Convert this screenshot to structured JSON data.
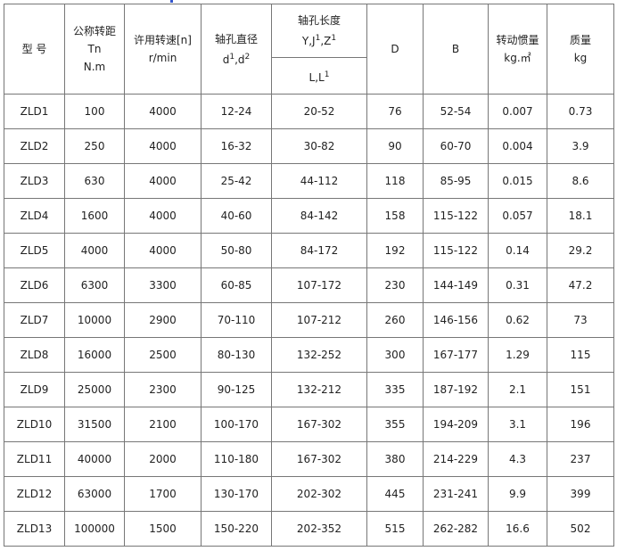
{
  "headers": {
    "model": "型 号",
    "torque": [
      "公称转距",
      "Tn",
      "N.m"
    ],
    "speed": [
      "许用转速[n]",
      "r/min"
    ],
    "bore_diameter": [
      "轴孔直径",
      "d",
      "1",
      ",d",
      "2"
    ],
    "bore_length": [
      "轴孔长度",
      "Y,J",
      "1",
      ",Z",
      "1"
    ],
    "bore_length_sub": [
      "L,L",
      "1"
    ],
    "D": "D",
    "B": "B",
    "inertia": [
      "转动惯量",
      "kg.㎡"
    ],
    "mass": [
      "质量",
      "kg"
    ]
  },
  "rows": [
    [
      "ZLD1",
      "100",
      "4000",
      "12-24",
      "20-52",
      "76",
      "52-54",
      "0.007",
      "0.73"
    ],
    [
      "ZLD2",
      "250",
      "4000",
      "16-32",
      "30-82",
      "90",
      "60-70",
      "0.004",
      "3.9"
    ],
    [
      "ZLD3",
      "630",
      "4000",
      "25-42",
      "44-112",
      "118",
      "85-95",
      "0.015",
      "8.6"
    ],
    [
      "ZLD4",
      "1600",
      "4000",
      "40-60",
      "84-142",
      "158",
      "115-122",
      "0.057",
      "18.1"
    ],
    [
      "ZLD5",
      "4000",
      "4000",
      "50-80",
      "84-172",
      "192",
      "115-122",
      "0.14",
      "29.2"
    ],
    [
      "ZLD6",
      "6300",
      "3300",
      "60-85",
      "107-172",
      "230",
      "144-149",
      "0.31",
      "47.2"
    ],
    [
      "ZLD7",
      "10000",
      "2900",
      "70-110",
      "107-212",
      "260",
      "146-156",
      "0.62",
      "73"
    ],
    [
      "ZLD8",
      "16000",
      "2500",
      "80-130",
      "132-252",
      "300",
      "167-177",
      "1.29",
      "115"
    ],
    [
      "ZLD9",
      "25000",
      "2300",
      "90-125",
      "132-212",
      "335",
      "187-192",
      "2.1",
      "151"
    ],
    [
      "ZLD10",
      "31500",
      "2100",
      "100-170",
      "167-302",
      "355",
      "194-209",
      "3.1",
      "196"
    ],
    [
      "ZLD11",
      "40000",
      "2000",
      "110-180",
      "167-302",
      "380",
      "214-229",
      "4.3",
      "237"
    ],
    [
      "ZLD12",
      "63000",
      "1700",
      "130-170",
      "202-302",
      "445",
      "231-241",
      "9.9",
      "399"
    ],
    [
      "ZLD13",
      "100000",
      "1500",
      "150-220",
      "202-352",
      "515",
      "262-282",
      "16.6",
      "502"
    ]
  ]
}
